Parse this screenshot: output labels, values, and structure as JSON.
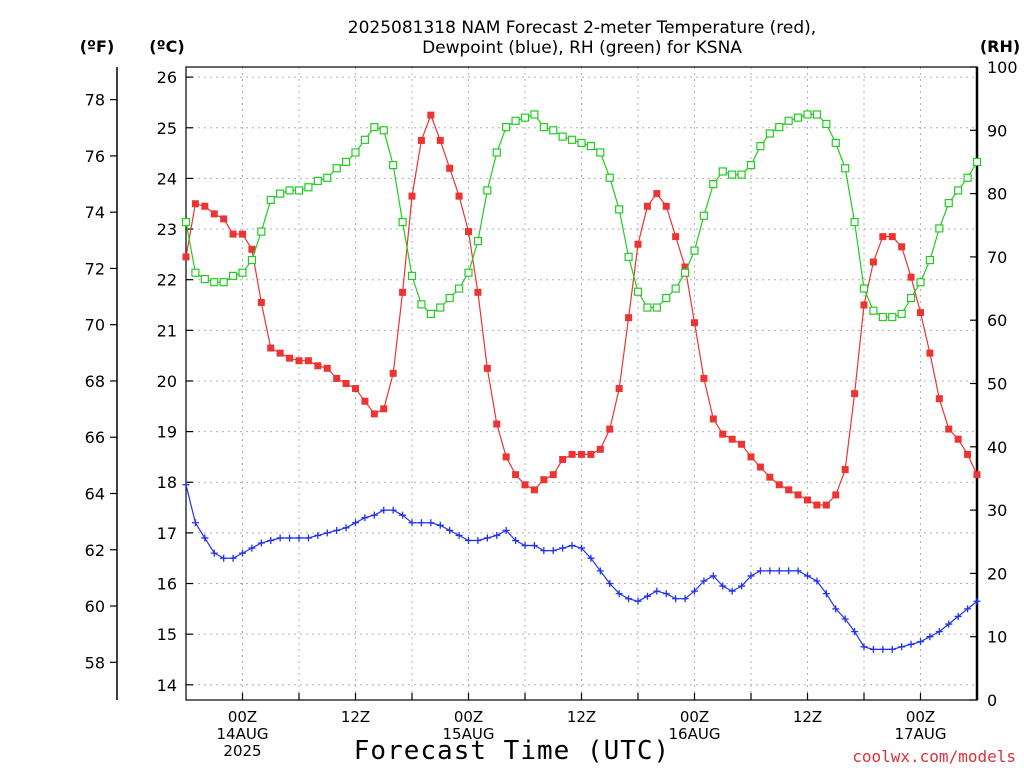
{
  "chart_data": {
    "type": "line",
    "title": [
      "2025081318 NAM Forecast 2-meter Temperature (red),",
      "Dewpoint (blue), RH (green) for KSNA"
    ],
    "xlabel": "Forecast Time (UTC)",
    "credit": "coolwx.com/models",
    "units": {
      "left_f": "(ºF)",
      "left_c": "(ºC)",
      "right_rh": "(RH)"
    },
    "x_hours": {
      "start": 0,
      "end": 84,
      "step": 1
    },
    "x_ticks": [
      {
        "hour": 6,
        "lines": [
          "00Z",
          "14AUG",
          "2025"
        ]
      },
      {
        "hour": 18,
        "lines": [
          "12Z"
        ]
      },
      {
        "hour": 30,
        "lines": [
          "00Z",
          "15AUG"
        ]
      },
      {
        "hour": 42,
        "lines": [
          "12Z"
        ]
      },
      {
        "hour": 54,
        "lines": [
          "00Z",
          "16AUG"
        ]
      },
      {
        "hour": 66,
        "lines": [
          "12Z"
        ]
      },
      {
        "hour": 78,
        "lines": [
          "00Z",
          "17AUG"
        ]
      }
    ],
    "axes": {
      "celsius": {
        "range": [
          13.7,
          26.2
        ],
        "ticks": [
          14,
          15,
          16,
          17,
          18,
          19,
          20,
          21,
          22,
          23,
          24,
          25,
          26
        ]
      },
      "fahrenheit": {
        "ticks": [
          58,
          60,
          62,
          64,
          66,
          68,
          70,
          72,
          74,
          76,
          78
        ]
      },
      "rh": {
        "range": [
          0,
          100
        ],
        "ticks": [
          0,
          10,
          20,
          30,
          40,
          50,
          60,
          70,
          80,
          90,
          100
        ]
      }
    },
    "grid": true,
    "series": [
      {
        "name": "Temperature",
        "color": "#ee3333",
        "marker": "filled-square",
        "units": "C",
        "values": [
          22.45,
          23.5,
          23.45,
          23.3,
          23.2,
          22.9,
          22.9,
          22.6,
          21.55,
          20.65,
          20.55,
          20.45,
          20.4,
          20.4,
          20.3,
          20.25,
          20.05,
          19.95,
          19.85,
          19.6,
          19.35,
          19.45,
          20.15,
          21.75,
          23.65,
          24.75,
          25.25,
          24.75,
          24.2,
          23.65,
          22.95,
          21.75,
          20.25,
          19.15,
          18.5,
          18.15,
          17.95,
          17.85,
          18.05,
          18.15,
          18.45,
          18.55,
          18.55,
          18.55,
          18.65,
          19.05,
          19.85,
          21.25,
          22.7,
          23.45,
          23.7,
          23.45,
          22.85,
          22.25,
          21.15,
          20.05,
          19.25,
          18.95,
          18.85,
          18.75,
          18.5,
          18.3,
          18.1,
          17.95,
          17.85,
          17.75,
          17.65,
          17.55,
          17.55,
          17.75,
          18.25,
          19.75,
          21.5,
          22.35,
          22.85,
          22.85,
          22.65,
          22.05,
          21.35,
          20.55,
          19.65,
          19.05,
          18.85,
          18.55,
          18.15
        ]
      },
      {
        "name": "Dewpoint",
        "color": "#2233ee",
        "marker": "plus",
        "units": "C",
        "values": [
          17.95,
          17.2,
          16.9,
          16.6,
          16.5,
          16.5,
          16.6,
          16.7,
          16.8,
          16.85,
          16.9,
          16.9,
          16.9,
          16.9,
          16.95,
          17.0,
          17.05,
          17.1,
          17.2,
          17.3,
          17.35,
          17.45,
          17.45,
          17.35,
          17.2,
          17.2,
          17.2,
          17.15,
          17.05,
          16.95,
          16.85,
          16.85,
          16.9,
          16.95,
          17.05,
          16.85,
          16.75,
          16.75,
          16.65,
          16.65,
          16.7,
          16.75,
          16.7,
          16.5,
          16.25,
          16.0,
          15.8,
          15.7,
          15.65,
          15.75,
          15.85,
          15.8,
          15.7,
          15.7,
          15.85,
          16.05,
          16.15,
          15.95,
          15.85,
          15.95,
          16.15,
          16.25,
          16.25,
          16.25,
          16.25,
          16.25,
          16.15,
          16.05,
          15.8,
          15.5,
          15.3,
          15.05,
          14.75,
          14.7,
          14.7,
          14.7,
          14.75,
          14.8,
          14.85,
          14.95,
          15.05,
          15.2,
          15.35,
          15.5,
          15.65
        ]
      },
      {
        "name": "RH",
        "color": "#22cc22",
        "marker": "open-square",
        "units": "%",
        "values": [
          75.5,
          67.5,
          66.5,
          66.0,
          66.0,
          67.0,
          67.5,
          69.5,
          74.0,
          79.0,
          80.0,
          80.5,
          80.5,
          81.0,
          82.0,
          82.5,
          84.0,
          85.0,
          86.5,
          88.5,
          90.5,
          90.0,
          84.5,
          75.5,
          67.0,
          62.5,
          61.0,
          62.0,
          63.5,
          65.0,
          67.5,
          72.5,
          80.5,
          86.5,
          90.5,
          91.5,
          92.0,
          92.5,
          90.5,
          90.0,
          89.0,
          88.5,
          88.0,
          87.5,
          86.5,
          82.5,
          77.5,
          70.0,
          64.5,
          62.0,
          62.0,
          63.5,
          65.0,
          67.5,
          71.0,
          76.5,
          81.5,
          83.5,
          83.0,
          83.0,
          84.5,
          87.5,
          89.5,
          90.5,
          91.5,
          92.0,
          92.5,
          92.5,
          91.0,
          88.0,
          84.0,
          75.5,
          65.0,
          61.5,
          60.5,
          60.5,
          61.0,
          63.5,
          66.0,
          69.5,
          74.5,
          78.5,
          80.5,
          82.5,
          85.0
        ]
      }
    ]
  }
}
